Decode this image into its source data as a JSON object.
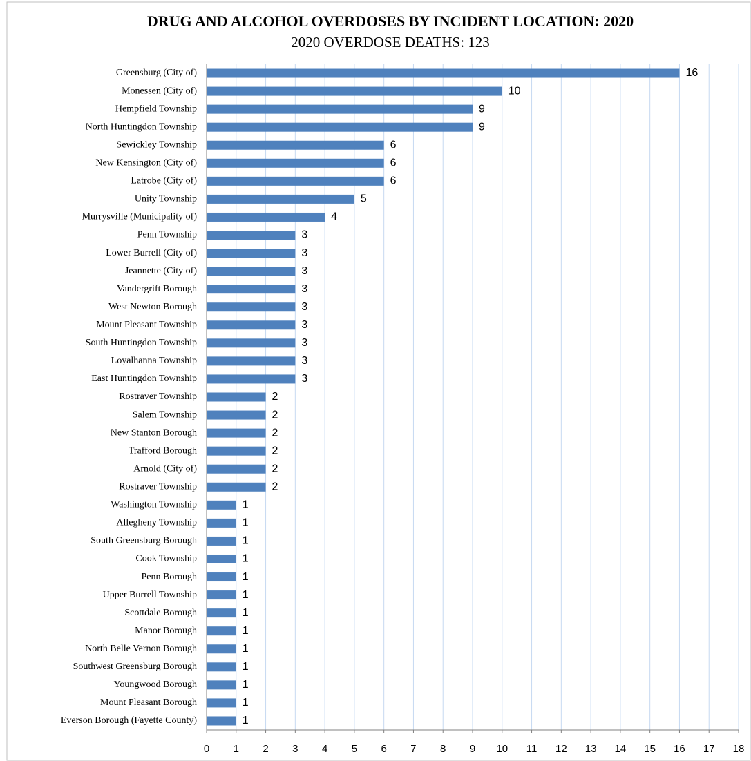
{
  "chart_data": {
    "type": "hbar",
    "title": "DRUG AND ALCOHOL OVERDOSES BY INCIDENT LOCATION: 2020",
    "subtitle": "2020 OVERDOSE DEATHS: 123",
    "categories": [
      "Greensburg (City of)",
      "Monessen (City of)",
      "Hempfield Township",
      "North Huntingdon Township",
      "Sewickley Township",
      "New Kensington (City of)",
      "Latrobe (City of)",
      "Unity Township",
      "Murrysville (Municipality of)",
      "Penn Township",
      "Lower Burrell (City of)",
      "Jeannette (City of)",
      "Vandergrift Borough",
      "West Newton Borough",
      "Mount Pleasant Township",
      "South Huntingdon Township",
      "Loyalhanna Township",
      "East Huntingdon Township",
      "Rostraver Township",
      "Salem Township",
      "New Stanton Borough",
      "Trafford Borough",
      "Arnold (City of)",
      "Rostraver Township",
      "Washington Township",
      "Allegheny Township",
      "South Greensburg Borough",
      "Cook Township",
      "Penn Borough",
      "Upper Burrell Township",
      "Scottdale Borough",
      "Manor Borough",
      "North Belle Vernon Borough",
      "Southwest Greensburg Borough",
      "Youngwood Borough",
      "Mount Pleasant Borough",
      "Everson Borough (Fayette County)"
    ],
    "values": [
      16,
      10,
      9,
      9,
      6,
      6,
      6,
      5,
      4,
      3,
      3,
      3,
      3,
      3,
      3,
      3,
      3,
      3,
      2,
      2,
      2,
      2,
      2,
      2,
      1,
      1,
      1,
      1,
      1,
      1,
      1,
      1,
      1,
      1,
      1,
      1,
      1
    ],
    "color": "#4f81bd",
    "xlim": [
      0,
      18
    ],
    "xticks": [
      0,
      1,
      2,
      3,
      4,
      5,
      6,
      7,
      8,
      9,
      10,
      11,
      12,
      13,
      14,
      15,
      16,
      17,
      18
    ],
    "grid": true
  }
}
